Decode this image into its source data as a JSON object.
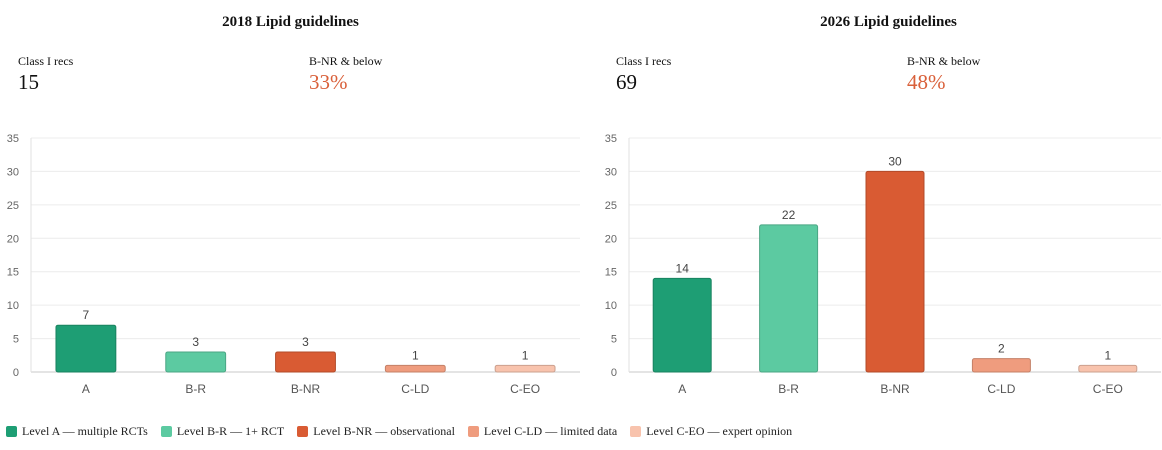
{
  "legend": [
    {
      "label": "Level A — multiple RCTs",
      "color": "#1e9e74"
    },
    {
      "label": "Level B-R — 1+ RCT",
      "color": "#5ccaa1"
    },
    {
      "label": "Level B-NR — observational",
      "color": "#d95b33"
    },
    {
      "label": "Level C-LD — limited data",
      "color": "#ef9c7e"
    },
    {
      "label": "Level C-EO — expert opinion",
      "color": "#f8c3ad"
    }
  ],
  "panels": [
    {
      "title": "2018 Lipid guidelines",
      "stats": {
        "class1_label": "Class I recs",
        "class1_value": "15",
        "bnr_label": "B-NR & below",
        "bnr_value": "33%"
      }
    },
    {
      "title": "2026 Lipid guidelines",
      "stats": {
        "class1_label": "Class I recs",
        "class1_value": "69",
        "bnr_label": "B-NR & below",
        "bnr_value": "48%"
      }
    }
  ],
  "chart_data": [
    {
      "type": "bar",
      "title": "2018 Lipid guidelines",
      "categories": [
        "A",
        "B-R",
        "B-NR",
        "C-LD",
        "C-EO"
      ],
      "values": [
        7,
        3,
        3,
        1,
        1
      ],
      "colors": [
        "#1e9e74",
        "#5ccaa1",
        "#d95b33",
        "#ef9c7e",
        "#f8c3ad"
      ],
      "yticks": [
        0,
        5,
        10,
        15,
        20,
        25,
        30,
        35
      ],
      "ylim": [
        0,
        35
      ],
      "xlabel": "",
      "ylabel": "",
      "grid": true
    },
    {
      "type": "bar",
      "title": "2026 Lipid guidelines",
      "categories": [
        "A",
        "B-R",
        "B-NR",
        "C-LD",
        "C-EO"
      ],
      "values": [
        14,
        22,
        30,
        2,
        1
      ],
      "colors": [
        "#1e9e74",
        "#5ccaa1",
        "#d95b33",
        "#ef9c7e",
        "#f8c3ad"
      ],
      "yticks": [
        0,
        5,
        10,
        15,
        20,
        25,
        30,
        35
      ],
      "ylim": [
        0,
        35
      ],
      "xlabel": "",
      "ylabel": "",
      "grid": true
    }
  ]
}
